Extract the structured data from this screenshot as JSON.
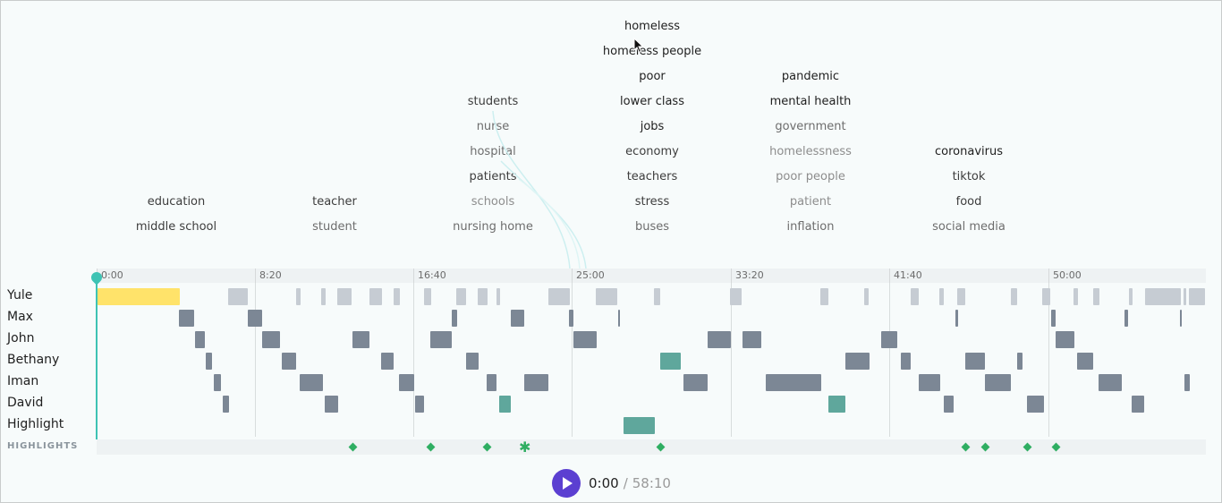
{
  "topics": {
    "col1": [
      "education",
      "middle school"
    ],
    "col2": [
      "teacher",
      "student"
    ],
    "col3": [
      "students",
      "nurse",
      "hospital",
      "patients",
      "schools",
      "nursing home"
    ],
    "col4": [
      "homeless",
      "homeless people",
      "poor",
      "lower class",
      "jobs",
      "economy",
      "teachers",
      "stress",
      "buses"
    ],
    "col5": [
      "pandemic",
      "mental health",
      "government",
      "homelessness",
      "poor people",
      "patient",
      "inflation"
    ],
    "col6": [
      "coronavirus",
      "tiktok",
      "food",
      "social media"
    ]
  },
  "ruler": {
    "ticks": [
      "0:00",
      "8:20",
      "16:40",
      "25:00",
      "33:20",
      "41:40",
      "50:00"
    ]
  },
  "tracks": [
    "Yule",
    "Max",
    "John",
    "Bethany",
    "Iman",
    "David",
    "Highlight"
  ],
  "highlights_label": "HIGHLIGHTS",
  "player": {
    "current_time": "0:00",
    "separator": "/",
    "total_time": "58:10"
  },
  "colors": {
    "speaker_segment": "#7c8795",
    "inactive_segment": "#c6ccd3",
    "highlight_segment": "#5fa79c",
    "current_segment": "#ffe36a",
    "playhead": "#3ec3b4",
    "highlight_marker": "#2fae62",
    "play_button": "#5b3fd1"
  }
}
